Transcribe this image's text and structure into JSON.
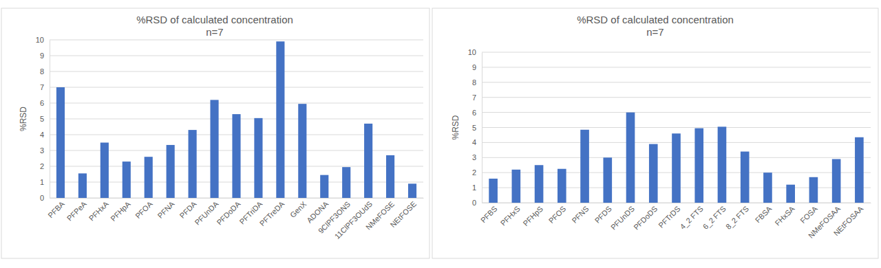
{
  "chart_data": [
    {
      "type": "bar",
      "title": "%RSD of calculated concentration",
      "subtitle": "n=7",
      "y_label": "%RSD",
      "categories": [
        "PFBA",
        "PFPeA",
        "PFHxA",
        "PFHpA",
        "PFOA",
        "PFNA",
        "PFDA",
        "PFUnDA",
        "PFDoDA",
        "PFTriDA",
        "PFTreDA",
        "GenX",
        "ADONA",
        "9ClPF3ONS",
        "11ClPF3OUdS",
        "NMeFOSE",
        "NEtFOSE"
      ],
      "values": [
        7.0,
        1.55,
        3.5,
        2.3,
        2.6,
        3.35,
        4.3,
        6.2,
        5.3,
        5.05,
        9.9,
        5.95,
        1.45,
        1.95,
        4.7,
        2.7,
        0.9
      ],
      "color": "#4472c4",
      "ylim": [
        0,
        10
      ],
      "yticks": [
        0,
        1,
        2,
        3,
        4,
        5,
        6,
        7,
        8,
        9,
        10
      ],
      "grid": true
    },
    {
      "type": "bar",
      "title": "%RSD of calculated concentration",
      "subtitle": "n=7",
      "y_label": "%RSD",
      "categories": [
        "PFBS",
        "PFHxS",
        "PFHpS",
        "PFOS",
        "PFNS",
        "PFDS",
        "PFUnDS",
        "PFDoDS",
        "PFTrDS",
        "4_2 FTS",
        "6_2 FTS",
        "8_2 FTS",
        "FBSA",
        "FHxSA",
        "FOSA",
        "NMeFOSAA",
        "NEtFOSAA"
      ],
      "values": [
        1.6,
        2.2,
        2.5,
        2.25,
        4.85,
        3.0,
        6.0,
        3.9,
        4.6,
        4.95,
        5.05,
        3.4,
        2.0,
        1.2,
        1.7,
        2.9,
        4.35
      ],
      "color": "#4472c4",
      "ylim": [
        0,
        10
      ],
      "yticks": [
        0,
        1,
        2,
        3,
        4,
        5,
        6,
        7,
        8,
        9,
        10
      ],
      "grid": true
    }
  ]
}
